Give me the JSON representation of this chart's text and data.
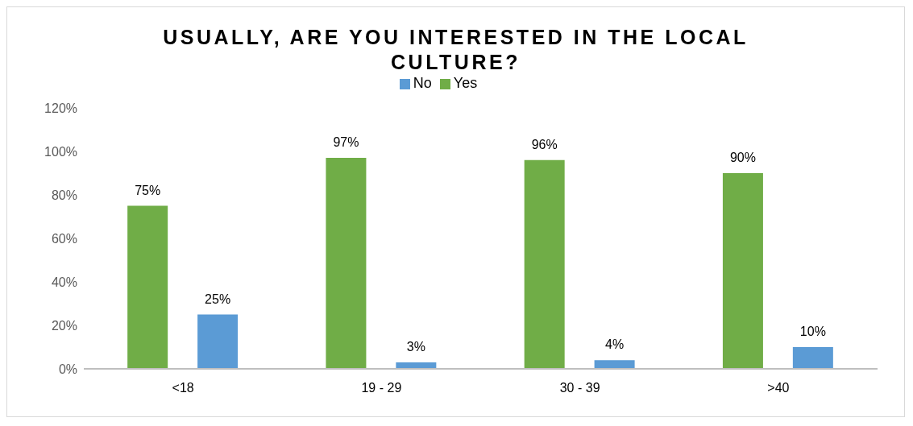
{
  "chart_data": {
    "type": "bar",
    "title": "USUALLY, ARE YOU INTERESTED IN THE LOCAL CULTURE?",
    "categories": [
      "<18",
      "19 - 29",
      "30 - 39",
      ">40"
    ],
    "series": [
      {
        "name": "Yes",
        "color": "#70ad47",
        "values": [
          75,
          97,
          96,
          90
        ],
        "value_labels": [
          "75%",
          "97%",
          "96%",
          "90%"
        ]
      },
      {
        "name": "No",
        "color": "#5b9bd5",
        "values": [
          25,
          3,
          4,
          10
        ],
        "value_labels": [
          "25%",
          "3%",
          "4%",
          "10%"
        ]
      }
    ],
    "ylim": [
      0,
      120
    ],
    "yticks": [
      {
        "value": 0,
        "label": "0%"
      },
      {
        "value": 20,
        "label": "20%"
      },
      {
        "value": 40,
        "label": "40%"
      },
      {
        "value": 60,
        "label": "60%"
      },
      {
        "value": 80,
        "label": "80%"
      },
      {
        "value": 100,
        "label": "100%"
      },
      {
        "value": 120,
        "label": "120%"
      }
    ],
    "grid": false,
    "legend": "top"
  }
}
